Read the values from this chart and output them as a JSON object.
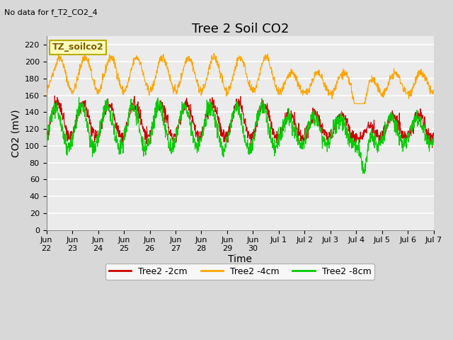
{
  "title": "Tree 2 Soil CO2",
  "subtitle": "No data for f_T2_CO2_4",
  "ylabel": "CO2 (mV)",
  "xlabel": "Time",
  "legend_label": "TZ_soilco2",
  "ylim": [
    0,
    230
  ],
  "yticks": [
    0,
    20,
    40,
    60,
    80,
    100,
    120,
    140,
    160,
    180,
    200,
    220
  ],
  "xtick_labels": [
    "Jun\n22",
    "Jun\n23",
    "Jun\n24",
    "Jun\n25",
    "Jun\n26",
    "Jun\n27",
    "Jun\n28",
    "Jun\n29",
    "Jun\n30",
    "Jul 1",
    "Jul 2",
    "Jul 3",
    "Jul 4",
    "Jul 5",
    "Jul 6",
    "Jul 7"
  ],
  "xtick_positions": [
    0,
    1,
    2,
    3,
    4,
    5,
    6,
    7,
    8,
    9,
    10,
    11,
    12,
    13,
    14,
    15
  ],
  "line_colors": {
    "2cm": "#cc0000",
    "4cm": "#ffa500",
    "8cm": "#00cc00"
  },
  "legend_entries": [
    "Tree2 -2cm",
    "Tree2 -4cm",
    "Tree2 -8cm"
  ],
  "legend_colors": [
    "#cc0000",
    "#ffa500",
    "#00cc00"
  ],
  "background_color": "#d8d8d8",
  "plot_bg_color": "#ebebeb",
  "grid_color": "#ffffff",
  "title_fontsize": 13,
  "axis_fontsize": 10,
  "tick_fontsize": 8
}
